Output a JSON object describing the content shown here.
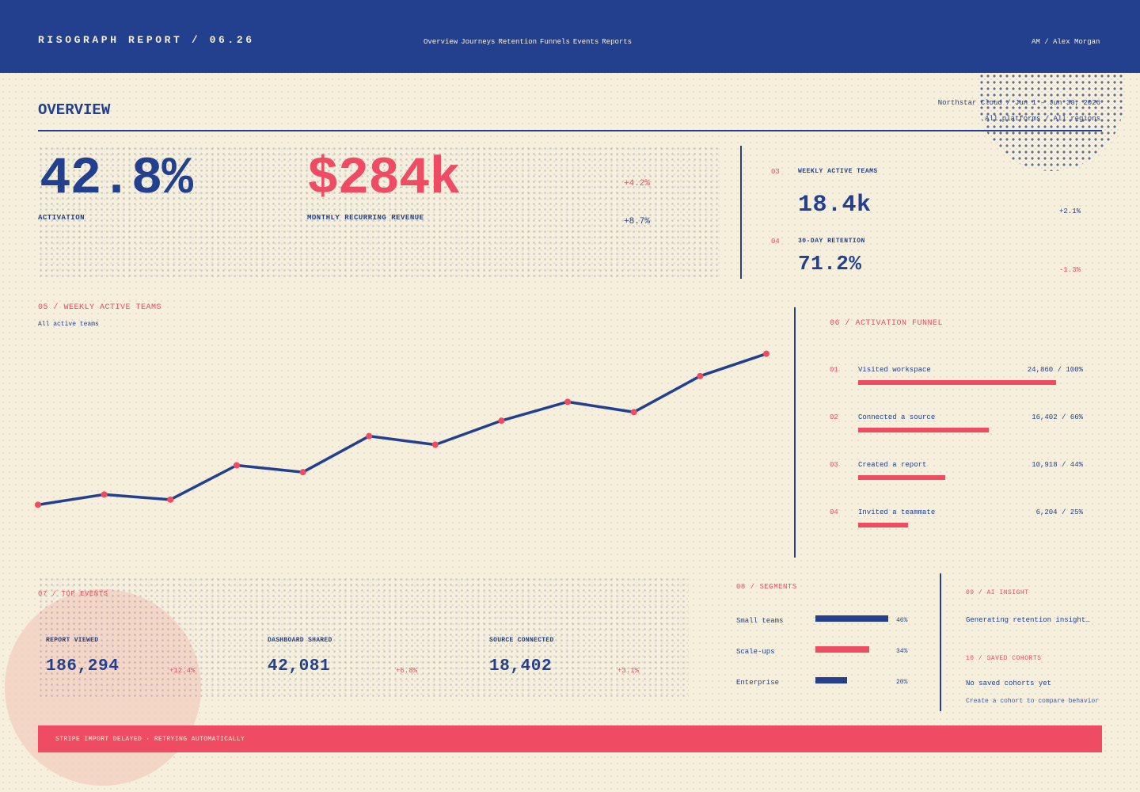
{
  "header": {
    "brand": "RISOGRAPH REPORT / 06.26",
    "nav": [
      "Overview",
      "Journeys",
      "Retention",
      "Funnels",
      "Events",
      "Reports"
    ],
    "user": "AM / Alex Morgan"
  },
  "overview": {
    "title": "OVERVIEW",
    "workspace_range": "Northstar Cloud / Jun 1 – Jun 30, 2026",
    "filters": "All platforms / All regions"
  },
  "kpis": {
    "activation": {
      "value": "42.8%",
      "label": "ACTIVATION",
      "delta": "+4.2%"
    },
    "mrr": {
      "value": "$284k",
      "label": "MONTHLY RECURRING REVENUE",
      "delta": "+8.7%"
    },
    "wat": {
      "index": "03",
      "label": "WEEKLY ACTIVE TEAMS",
      "value": "18.4k",
      "delta": "+2.1%"
    },
    "retention": {
      "index": "04",
      "label": "30-DAY RETENTION",
      "value": "71.2%",
      "delta": "-1.3%"
    }
  },
  "chart_data": {
    "type": "line",
    "title": "05 / WEEKLY ACTIVE TEAMS",
    "subtitle": "All active teams",
    "series": [
      {
        "values": [
          12.2,
          12.8,
          12.5,
          14.5,
          14.1,
          16.2,
          15.7,
          17.1,
          18.2,
          17.6,
          19.7,
          21.0
        ]
      }
    ],
    "ylim": [
      10,
      22
    ],
    "grid": false,
    "legend": "none"
  },
  "funnel": {
    "title": "06 / ACTIVATION FUNNEL",
    "steps": [
      {
        "index": "01",
        "label": "Visited workspace",
        "value": "24,860 / 100%",
        "share": 1.0
      },
      {
        "index": "02",
        "label": "Connected a source",
        "value": "16,402 / 66%",
        "share": 0.66
      },
      {
        "index": "03",
        "label": "Created a report",
        "value": "10,918 / 44%",
        "share": 0.44
      },
      {
        "index": "04",
        "label": "Invited a teammate",
        "value": "6,204 / 25%",
        "share": 0.25
      }
    ]
  },
  "events": {
    "title": "07 / TOP EVENTS",
    "items": [
      {
        "label": "REPORT VIEWED",
        "value": "186,294",
        "delta": "+12.4%"
      },
      {
        "label": "DASHBOARD SHARED",
        "value": "42,081",
        "delta": "+6.8%"
      },
      {
        "label": "SOURCE CONNECTED",
        "value": "18,402",
        "delta": "+3.1%"
      }
    ]
  },
  "segments": {
    "title": "08 / SEGMENTS",
    "items": [
      {
        "label": "Small teams",
        "pct": "46%",
        "share": 0.46,
        "color": "#23408f"
      },
      {
        "label": "Scale-ups",
        "pct": "34%",
        "share": 0.34,
        "color": "#ef4b63"
      },
      {
        "label": "Enterprise",
        "pct": "20%",
        "share": 0.2,
        "color": "#23408f"
      }
    ]
  },
  "insight": {
    "title": "09 / AI INSIGHT",
    "text": "Generating retention insight…"
  },
  "cohorts": {
    "title": "10 / SAVED COHORTS",
    "empty": "No saved cohorts yet",
    "hint": "Create a cohort to compare behavior"
  },
  "alert": {
    "text": "STRIPE IMPORT DELAYED · RETRYING AUTOMATICALLY"
  },
  "colors": {
    "ink": "#23408f",
    "accent": "#ef4b63",
    "paper": "#f6efdc"
  }
}
